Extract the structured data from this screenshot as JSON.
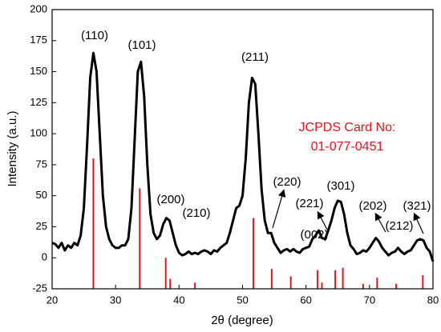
{
  "chart_data": {
    "type": "line",
    "xlabel": "2θ (degree)",
    "ylabel": "Intensity (a.u.)",
    "xlim": [
      20,
      80
    ],
    "xticks": [
      20,
      30,
      40,
      50,
      60,
      70,
      80
    ],
    "ylim": [
      -25,
      200
    ],
    "yticks": [
      -25,
      0,
      25,
      50,
      75,
      100,
      125,
      150,
      175,
      200
    ],
    "x": [
      20,
      20.5,
      21,
      21.5,
      22,
      22.5,
      23,
      23.5,
      24,
      24.5,
      25,
      25.5,
      26,
      26.5,
      27,
      27.5,
      28,
      28.5,
      29,
      29.5,
      30,
      30.5,
      31,
      31.5,
      32,
      32.5,
      33,
      33.5,
      34,
      34.5,
      35,
      35.5,
      36,
      36.5,
      37,
      37.5,
      38,
      38.5,
      39,
      39.5,
      40,
      40.5,
      41,
      41.5,
      42,
      42.5,
      43,
      43.5,
      44,
      44.5,
      45,
      45.5,
      46,
      46.5,
      47,
      47.5,
      48,
      48.5,
      49,
      49.5,
      50,
      50.5,
      51,
      51.5,
      52,
      52.5,
      53,
      53.5,
      54,
      54.5,
      55,
      55.5,
      56,
      56.5,
      57,
      57.5,
      58,
      58.5,
      59,
      59.5,
      60,
      60.5,
      61,
      61.5,
      62,
      62.5,
      63,
      63.5,
      64,
      64.5,
      65,
      65.5,
      66,
      66.5,
      67,
      67.5,
      68,
      68.5,
      69,
      69.5,
      70,
      70.5,
      71,
      71.5,
      72,
      72.5,
      73,
      73.5,
      74,
      74.5,
      75,
      75.5,
      76,
      76.5,
      77,
      77.5,
      78,
      78.5,
      79,
      79.5,
      80
    ],
    "series": [
      {
        "color": "#000000",
        "values": [
          12,
          11,
          8,
          12,
          6,
          10,
          8,
          12,
          10,
          18,
          40,
          90,
          145,
          165,
          150,
          100,
          50,
          25,
          15,
          10,
          8,
          8,
          10,
          10,
          15,
          40,
          95,
          150,
          158,
          130,
          75,
          35,
          20,
          15,
          18,
          27,
          32,
          30,
          20,
          10,
          4,
          2,
          3,
          5,
          3,
          4,
          3,
          5,
          6,
          5,
          3,
          6,
          5,
          8,
          10,
          12,
          20,
          30,
          40,
          42,
          50,
          80,
          125,
          145,
          140,
          100,
          55,
          30,
          20,
          20,
          12,
          8,
          4,
          6,
          7,
          5,
          7,
          5,
          4,
          7,
          8,
          9,
          15,
          18,
          22,
          16,
          15,
          22,
          30,
          40,
          46,
          45,
          35,
          20,
          10,
          7,
          3,
          4,
          6,
          5,
          8,
          12,
          16,
          13,
          8,
          5,
          2,
          4,
          5,
          8,
          5,
          3,
          5,
          6,
          10,
          14,
          15,
          14,
          8,
          5,
          -3
        ]
      },
      {
        "type": "stick",
        "color": "#e8141c",
        "x": [
          26.5,
          33.8,
          37.9,
          38.6,
          42.5,
          51.7,
          54.6,
          57.6,
          61.8,
          62.5,
          64.6,
          65.8,
          69.0,
          71.2,
          74.2,
          78.4
        ],
        "values": [
          80,
          56,
          0,
          -17,
          -20,
          32,
          -9,
          -15,
          -10,
          -20,
          -10,
          -8,
          -21,
          -16,
          -21,
          -14
        ]
      }
    ],
    "annotations": [
      "(110)",
      "(101)",
      "(211)",
      "(200)",
      "(210)",
      "(220)",
      "(002)",
      "(221)",
      "(301)",
      "(202)",
      "(212)",
      "(321)"
    ],
    "card_label": [
      "JCPDS Card No:",
      "01-077-0451"
    ]
  }
}
